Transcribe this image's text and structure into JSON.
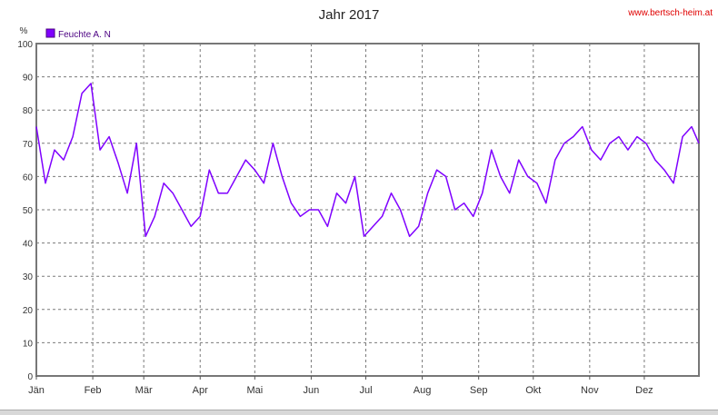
{
  "page": {
    "brand_url": "www.bertsch-heim.at",
    "url_color": "#e00000"
  },
  "chart_data": {
    "type": "line",
    "title": "Jahr 2017",
    "ylabel": "%",
    "xlabel": "",
    "ylim": [
      0,
      100
    ],
    "yticks": [
      0,
      10,
      20,
      30,
      40,
      50,
      60,
      70,
      80,
      90,
      100
    ],
    "x_range": [
      "2017-01-01",
      "2017-12-31"
    ],
    "xticks": [
      {
        "label": "Jän",
        "date": "2017-01-01"
      },
      {
        "label": "Feb",
        "date": "2017-02-01"
      },
      {
        "label": "Mär",
        "date": "2017-03-01"
      },
      {
        "label": "Apr",
        "date": "2017-04-01"
      },
      {
        "label": "Mai",
        "date": "2017-05-01"
      },
      {
        "label": "Jun",
        "date": "2017-06-01"
      },
      {
        "label": "Jul",
        "date": "2017-07-01"
      },
      {
        "label": "Aug",
        "date": "2017-08-01"
      },
      {
        "label": "Sep",
        "date": "2017-09-01"
      },
      {
        "label": "Okt",
        "date": "2017-10-01"
      },
      {
        "label": "Nov",
        "date": "2017-11-01"
      },
      {
        "label": "Dez",
        "date": "2017-12-01"
      }
    ],
    "grid": true,
    "legend": "top-left",
    "series": [
      {
        "name": "Feuchte A. N",
        "color": "#7f00ff",
        "x": [
          "2017-01-01",
          "2017-01-06",
          "2017-01-11",
          "2017-01-16",
          "2017-01-21",
          "2017-01-26",
          "2017-01-31",
          "2017-02-05",
          "2017-02-10",
          "2017-02-15",
          "2017-02-20",
          "2017-02-25",
          "2017-03-02",
          "2017-03-07",
          "2017-03-12",
          "2017-03-17",
          "2017-03-22",
          "2017-03-27",
          "2017-04-01",
          "2017-04-06",
          "2017-04-11",
          "2017-04-16",
          "2017-04-21",
          "2017-04-26",
          "2017-05-01",
          "2017-05-06",
          "2017-05-11",
          "2017-05-16",
          "2017-05-21",
          "2017-05-26",
          "2017-05-31",
          "2017-06-05",
          "2017-06-10",
          "2017-06-15",
          "2017-06-20",
          "2017-06-25",
          "2017-06-30",
          "2017-07-05",
          "2017-07-10",
          "2017-07-15",
          "2017-07-20",
          "2017-07-25",
          "2017-07-30",
          "2017-08-04",
          "2017-08-09",
          "2017-08-14",
          "2017-08-19",
          "2017-08-24",
          "2017-08-29",
          "2017-09-03",
          "2017-09-08",
          "2017-09-13",
          "2017-09-18",
          "2017-09-23",
          "2017-09-28",
          "2017-10-03",
          "2017-10-08",
          "2017-10-13",
          "2017-10-18",
          "2017-10-23",
          "2017-10-28",
          "2017-11-02",
          "2017-11-07",
          "2017-11-12",
          "2017-11-17",
          "2017-11-22",
          "2017-11-27",
          "2017-12-02",
          "2017-12-07",
          "2017-12-12",
          "2017-12-17",
          "2017-12-22",
          "2017-12-27",
          "2017-12-31"
        ],
        "values": [
          75,
          58,
          68,
          65,
          72,
          85,
          88,
          68,
          72,
          64,
          55,
          70,
          42,
          48,
          58,
          55,
          50,
          45,
          48,
          62,
          55,
          55,
          60,
          65,
          62,
          58,
          70,
          60,
          52,
          48,
          50,
          50,
          45,
          55,
          52,
          60,
          42,
          45,
          48,
          55,
          50,
          42,
          45,
          55,
          62,
          60,
          50,
          52,
          48,
          55,
          68,
          60,
          55,
          65,
          60,
          58,
          52,
          65,
          70,
          72,
          75,
          68,
          65,
          70,
          72,
          68,
          72,
          70,
          65,
          62,
          58,
          72,
          75,
          70
        ]
      }
    ]
  }
}
